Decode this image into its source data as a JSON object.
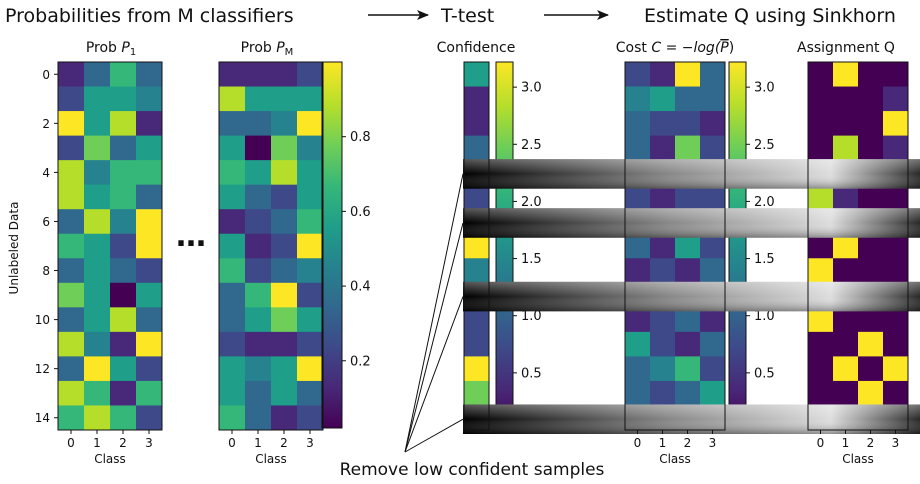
{
  "header": {
    "step1": "Probabilities from M classifiers",
    "step2": "T-test",
    "step3": "Estimate Q using Sinkhorn"
  },
  "panels": {
    "prob1_title_main": "Prob ",
    "prob1_title_sym": "P",
    "prob1_title_sub": "1",
    "probM_title_main": "Prob ",
    "probM_title_sym": "P",
    "probM_title_sub": "M",
    "confidence_title": "Confidence",
    "cost_title_a": "Cost ",
    "cost_title_b": "C = −log(",
    "cost_title_c": "P",
    "cost_title_d": ")",
    "assign_title": "Assignment Q",
    "ylabel": "Unlabeled Data",
    "xlabel": "Class",
    "ellipsis": "…",
    "footer": "Remove low confident samples"
  },
  "axes": {
    "class_ticks": [
      "0",
      "1",
      "2",
      "3"
    ],
    "row_ticks": [
      "0",
      "2",
      "4",
      "6",
      "8",
      "10",
      "12",
      "14"
    ],
    "prob_colorbar_ticks": [
      "0.8",
      "0.6",
      "0.4",
      "0.2"
    ],
    "conf_colorbar_ticks": [
      "3.0",
      "2.5",
      "2.0",
      "1.5",
      "1.0",
      "0.5"
    ]
  },
  "colors": {
    "viridis": [
      "#440154",
      "#482878",
      "#3e4989",
      "#31688e",
      "#26828e",
      "#1f9e89",
      "#35b779",
      "#6ece58",
      "#b5de2b",
      "#fde725"
    ]
  },
  "matrices": {
    "prob1": [
      [
        0.15,
        0.38,
        0.7,
        0.32
      ],
      [
        0.2,
        0.55,
        0.6,
        0.45
      ],
      [
        0.95,
        0.58,
        0.9,
        0.15
      ],
      [
        0.22,
        0.8,
        0.35,
        0.55
      ],
      [
        0.85,
        0.4,
        0.72,
        0.72
      ],
      [
        0.88,
        0.55,
        0.68,
        0.32
      ],
      [
        0.3,
        0.9,
        0.4,
        1.0
      ],
      [
        0.72,
        0.58,
        0.18,
        0.97
      ],
      [
        0.38,
        0.55,
        0.35,
        0.25
      ],
      [
        0.82,
        0.6,
        0.02,
        0.6
      ],
      [
        0.38,
        0.5,
        0.88,
        0.3
      ],
      [
        0.92,
        0.48,
        0.12,
        0.95
      ],
      [
        0.3,
        1.0,
        0.55,
        0.2
      ],
      [
        0.92,
        0.7,
        0.15,
        0.72
      ],
      [
        0.62,
        0.9,
        0.72,
        0.18
      ]
    ],
    "probM": [
      [
        0.1,
        0.1,
        0.15,
        0.2
      ],
      [
        0.85,
        0.6,
        0.55,
        0.58
      ],
      [
        0.3,
        0.35,
        0.45,
        0.96
      ],
      [
        0.55,
        0.05,
        0.75,
        0.4
      ],
      [
        0.65,
        0.55,
        0.85,
        0.6
      ],
      [
        0.6,
        0.3,
        0.2,
        0.5
      ],
      [
        0.15,
        0.25,
        0.35,
        0.62
      ],
      [
        0.55,
        0.1,
        0.25,
        0.97
      ],
      [
        0.65,
        0.25,
        0.3,
        0.42
      ],
      [
        0.3,
        0.65,
        0.98,
        0.25
      ],
      [
        0.35,
        0.52,
        0.75,
        0.58
      ],
      [
        0.2,
        0.1,
        0.15,
        0.22
      ],
      [
        0.6,
        0.45,
        0.58,
        1.0
      ],
      [
        0.55,
        0.3,
        0.5,
        0.35
      ],
      [
        0.68,
        0.3,
        0.12,
        0.2
      ]
    ],
    "confidence": [
      0.5,
      0.15,
      0.08,
      0.3,
      0.3,
      0.2,
      0.2,
      0.98,
      0.4,
      0.2,
      0.2,
      0.2,
      0.98,
      0.8,
      0.3
    ],
    "cost": [
      [
        0.25,
        0.12,
        0.98,
        0.3
      ],
      [
        0.45,
        0.5,
        0.35,
        0.3
      ],
      [
        0.28,
        0.2,
        0.25,
        0.12
      ],
      [
        0.35,
        0.1,
        0.75,
        0.2
      ],
      [
        0.35,
        0.1,
        0.15,
        0.2
      ],
      [
        0.2,
        0.12,
        0.25,
        0.2
      ],
      [
        0.3,
        0.15,
        0.2,
        0.3
      ],
      [
        0.35,
        0.08,
        0.52,
        0.25
      ],
      [
        0.08,
        0.2,
        0.15,
        0.3
      ],
      [
        0.2,
        0.3,
        0.25,
        0.2
      ],
      [
        0.08,
        0.2,
        0.38,
        0.15
      ],
      [
        0.5,
        0.18,
        0.12,
        0.35
      ],
      [
        0.3,
        0.45,
        0.7,
        0.22
      ],
      [
        0.3,
        0.25,
        0.3,
        0.55
      ],
      [
        0.2,
        0.2,
        0.15,
        0.2
      ]
    ],
    "assignment": [
      [
        0,
        1,
        0,
        0
      ],
      [
        0,
        0,
        0,
        0.15
      ],
      [
        0,
        0,
        0,
        1
      ],
      [
        0,
        0.85,
        0,
        0.15
      ],
      [
        0,
        0,
        0,
        0
      ],
      [
        0.85,
        0.15,
        0,
        0
      ],
      [
        0,
        0,
        0,
        0
      ],
      [
        0,
        1,
        0,
        0
      ],
      [
        1,
        0,
        0,
        0
      ],
      [
        0,
        0,
        0,
        0
      ],
      [
        1,
        0,
        0,
        0
      ],
      [
        0,
        0,
        1,
        0
      ],
      [
        0,
        1,
        0,
        1
      ],
      [
        0,
        0,
        1,
        0
      ],
      [
        0,
        0,
        0,
        0
      ]
    ]
  }
}
